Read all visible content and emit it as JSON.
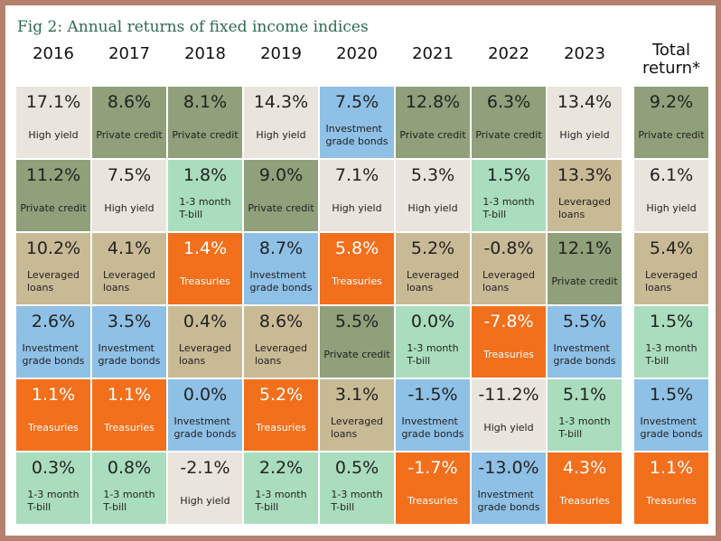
{
  "title": "Fig 2: Annual returns of fixed income indices",
  "columns": [
    {
      "header": [
        "2016"
      ],
      "cells": [
        {
          "value": "17.1%",
          "label": [
            "High yield"
          ],
          "color": "#e9e4dc"
        },
        {
          "value": "11.2%",
          "label": [
            "Private credit"
          ],
          "color": "#8fa07a"
        },
        {
          "value": "10.2%",
          "label": [
            "Leveraged",
            "loans"
          ],
          "color": "#c9ba96"
        },
        {
          "value": "2.6%",
          "label": [
            "Investment",
            "grade bonds"
          ],
          "color": "#8fc0e6"
        },
        {
          "value": "1.1%",
          "label": [
            "Treasuries"
          ],
          "color": "#f26f1c",
          "text_color": "#ffffff"
        },
        {
          "value": "0.3%",
          "label": [
            "1-3 month",
            "T-bill"
          ],
          "color": "#a9ddbd"
        }
      ]
    },
    {
      "header": [
        "2017"
      ],
      "cells": [
        {
          "value": "8.6%",
          "label": [
            "Private credit"
          ],
          "color": "#8fa07a"
        },
        {
          "value": "7.5%",
          "label": [
            "High yield"
          ],
          "color": "#e9e4dc"
        },
        {
          "value": "4.1%",
          "label": [
            "Leveraged",
            "loans"
          ],
          "color": "#c9ba96"
        },
        {
          "value": "3.5%",
          "label": [
            "Investment",
            "grade bonds"
          ],
          "color": "#8fc0e6"
        },
        {
          "value": "1.1%",
          "label": [
            "Treasuries"
          ],
          "color": "#f26f1c",
          "text_color": "#ffffff"
        },
        {
          "value": "0.8%",
          "label": [
            "1-3 month",
            "T-bill"
          ],
          "color": "#a9ddbd"
        }
      ]
    },
    {
      "header": [
        "2018"
      ],
      "cells": [
        {
          "value": "8.1%",
          "label": [
            "Private credit"
          ],
          "color": "#8fa07a"
        },
        {
          "value": "1.8%",
          "label": [
            "1-3 month",
            "T-bill"
          ],
          "color": "#a9ddbd"
        },
        {
          "value": "1.4%",
          "label": [
            "Treasuries"
          ],
          "color": "#f26f1c",
          "text_color": "#ffffff"
        },
        {
          "value": "0.4%",
          "label": [
            "Leveraged",
            "loans"
          ],
          "color": "#c9ba96"
        },
        {
          "value": "0.0%",
          "label": [
            "Investment",
            "grade bonds"
          ],
          "color": "#8fc0e6"
        },
        {
          "value": "-2.1%",
          "label": [
            "High yield"
          ],
          "color": "#e9e4dc"
        }
      ]
    },
    {
      "header": [
        "2019"
      ],
      "cells": [
        {
          "value": "14.3%",
          "label": [
            "High yield"
          ],
          "color": "#e9e4dc"
        },
        {
          "value": "9.0%",
          "label": [
            "Private credit"
          ],
          "color": "#8fa07a"
        },
        {
          "value": "8.7%",
          "label": [
            "Investment",
            "grade bonds"
          ],
          "color": "#8fc0e6"
        },
        {
          "value": "8.6%",
          "label": [
            "Leveraged",
            "loans"
          ],
          "color": "#c9ba96"
        },
        {
          "value": "5.2%",
          "label": [
            "Treasuries"
          ],
          "color": "#f26f1c",
          "text_color": "#ffffff"
        },
        {
          "value": "2.2%",
          "label": [
            "1-3 month",
            "T-bill"
          ],
          "color": "#a9ddbd"
        }
      ]
    },
    {
      "header": [
        "2020"
      ],
      "cells": [
        {
          "value": "7.5%",
          "label": [
            "Investment",
            "grade bonds"
          ],
          "color": "#8fc0e6"
        },
        {
          "value": "7.1%",
          "label": [
            "High yield"
          ],
          "color": "#e9e4dc"
        },
        {
          "value": "5.8%",
          "label": [
            "Treasuries"
          ],
          "color": "#f26f1c",
          "text_color": "#ffffff"
        },
        {
          "value": "5.5%",
          "label": [
            "Private credit"
          ],
          "color": "#8fa07a"
        },
        {
          "value": "3.1%",
          "label": [
            "Leveraged",
            "loans"
          ],
          "color": "#c9ba96"
        },
        {
          "value": "0.5%",
          "label": [
            "1-3 month",
            "T-bill"
          ],
          "color": "#a9ddbd"
        }
      ]
    },
    {
      "header": [
        "2021"
      ],
      "cells": [
        {
          "value": "12.8%",
          "label": [
            "Private credit"
          ],
          "color": "#8fa07a"
        },
        {
          "value": "5.3%",
          "label": [
            "High yield"
          ],
          "color": "#e9e4dc"
        },
        {
          "value": "5.2%",
          "label": [
            "Leveraged",
            "loans"
          ],
          "color": "#c9ba96"
        },
        {
          "value": "0.0%",
          "label": [
            "1-3 month",
            "T-bill"
          ],
          "color": "#a9ddbd"
        },
        {
          "value": "-1.5%",
          "label": [
            "Investment",
            "grade bonds"
          ],
          "color": "#8fc0e6"
        },
        {
          "value": "-1.7%",
          "label": [
            "Treasuries"
          ],
          "color": "#f26f1c",
          "text_color": "#ffffff"
        }
      ]
    },
    {
      "header": [
        "2022"
      ],
      "cells": [
        {
          "value": "6.3%",
          "label": [
            "Private credit"
          ],
          "color": "#8fa07a"
        },
        {
          "value": "1.5%",
          "label": [
            "1-3 month",
            "T-bill"
          ],
          "color": "#a9ddbd"
        },
        {
          "value": "-0.8%",
          "label": [
            "Leveraged",
            "loans"
          ],
          "color": "#c9ba96"
        },
        {
          "value": "-7.8%",
          "label": [
            "Treasuries"
          ],
          "color": "#f26f1c",
          "text_color": "#ffffff"
        },
        {
          "value": "-11.2%",
          "label": [
            "High yield"
          ],
          "color": "#e9e4dc"
        },
        {
          "value": "-13.0%",
          "label": [
            "Investment",
            "grade bonds"
          ],
          "color": "#8fc0e6"
        }
      ]
    },
    {
      "header": [
        "2023"
      ],
      "cells": [
        {
          "value": "13.4%",
          "label": [
            "High yield"
          ],
          "color": "#e9e4dc"
        },
        {
          "value": "13.3%",
          "label": [
            "Leveraged",
            "loans"
          ],
          "color": "#c9ba96"
        },
        {
          "value": "12.1%",
          "label": [
            "Private credit"
          ],
          "color": "#8fa07a"
        },
        {
          "value": "5.5%",
          "label": [
            "Investment",
            "grade bonds"
          ],
          "color": "#8fc0e6"
        },
        {
          "value": "5.1%",
          "label": [
            "1-3 month",
            "T-bill"
          ],
          "color": "#a9ddbd"
        },
        {
          "value": "4.3%",
          "label": [
            "Treasuries"
          ],
          "color": "#f26f1c",
          "text_color": "#ffffff"
        }
      ]
    },
    {
      "header": [
        "Total",
        "return*"
      ],
      "cells": [
        {
          "value": "9.2%",
          "label": [
            "Private credit"
          ],
          "color": "#8fa07a"
        },
        {
          "value": "6.1%",
          "label": [
            "High yield"
          ],
          "color": "#e9e4dc"
        },
        {
          "value": "5.4%",
          "label": [
            "Leveraged",
            "loans"
          ],
          "color": "#c9ba96"
        },
        {
          "value": "1.5%",
          "label": [
            "1-3 month",
            "T-bill"
          ],
          "color": "#a9ddbd"
        },
        {
          "value": "1.5%",
          "label": [
            "Investment",
            "grade bonds"
          ],
          "color": "#8fc0e6"
        },
        {
          "value": "1.1%",
          "label": [
            "Treasuries"
          ],
          "color": "#f26f1c",
          "text_color": "#ffffff"
        }
      ]
    }
  ]
}
